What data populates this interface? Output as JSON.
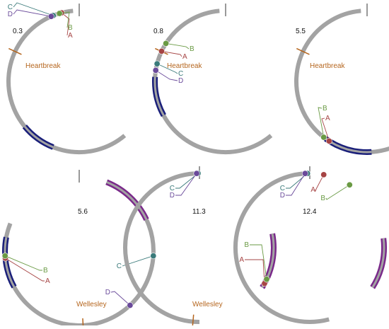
{
  "colors": {
    "track": "#a3a3a3",
    "blue_segment": "#1a1f7a",
    "purple_segment": "#7a2a8a",
    "landmark": "#b5651d",
    "start_tick": "#555555",
    "runner_A": "#a64444",
    "runner_B": "#6a9a44",
    "runner_C": "#3a7a7a",
    "runner_D": "#6a4a9a"
  },
  "panels": [
    {
      "time": "0.3",
      "landmark": "Heartbreak",
      "highlights": [
        {
          "color": "blue",
          "from": 0.56,
          "to": 0.64
        }
      ],
      "runners": [
        {
          "name": "A",
          "pos": 0.96
        },
        {
          "name": "B",
          "pos": 0.955
        },
        {
          "name": "C",
          "pos": 0.94
        },
        {
          "name": "D",
          "pos": 0.935
        }
      ]
    },
    {
      "time": "0.8",
      "landmark": "Heartbreak",
      "highlights": [
        {
          "color": "blue",
          "from": 0.67,
          "to": 0.76
        }
      ],
      "runners": [
        {
          "name": "A",
          "pos": 0.82
        },
        {
          "name": "B",
          "pos": 0.84
        },
        {
          "name": "C",
          "pos": 0.79
        },
        {
          "name": "D",
          "pos": 0.775
        }
      ]
    },
    {
      "time": "5.5",
      "landmark": "Heartbreak",
      "highlights": [
        {
          "color": "blue",
          "from": 0.49,
          "to": 0.6
        }
      ],
      "runners": [
        {
          "name": "A",
          "pos": 0.59
        },
        {
          "name": "B",
          "pos": 0.605
        }
      ]
    },
    {
      "time": "5.6",
      "landmark": "Wellesley",
      "highlights": [
        {
          "color": "purple",
          "from": 0.06,
          "to": 0.18
        },
        {
          "color": "blue",
          "from": 0.67,
          "to": 0.78
        }
      ],
      "runners": [
        {
          "name": "A",
          "pos": 0.735
        },
        {
          "name": "B",
          "pos": 0.74
        },
        {
          "name": "C",
          "pos": 0.26
        },
        {
          "name": "D",
          "pos": 0.38
        }
      ]
    },
    {
      "time": "11.3",
      "landmark": "Wellesley",
      "highlights": [
        {
          "color": "purple",
          "from": 0.22,
          "to": 0.34
        }
      ],
      "runners": [
        {
          "name": "A",
          "pos": 0.33
        },
        {
          "name": "B",
          "pos": 0.32
        },
        {
          "name": "C",
          "pos": 0.997
        },
        {
          "name": "D",
          "pos": 0.994
        }
      ]
    },
    {
      "time": "12.4",
      "landmark": "",
      "highlights": [
        {
          "color": "purple",
          "from": 0.23,
          "to": 0.34
        }
      ],
      "runners": [
        {
          "name": "A",
          "pos": 0.03
        },
        {
          "name": "B",
          "pos": 0.09
        },
        {
          "name": "C",
          "pos": 0.995
        },
        {
          "name": "D",
          "pos": 0.99
        }
      ]
    }
  ]
}
